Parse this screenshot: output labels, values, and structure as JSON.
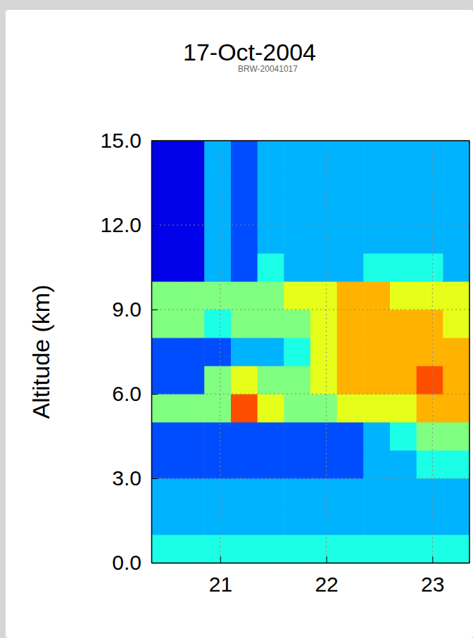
{
  "chart_data": {
    "type": "heatmap",
    "title": "17-Oct-2004",
    "subtitle": "BRW-20041017",
    "y_label": "Altitude (km)",
    "xlim": [
      20.35,
      23.35
    ],
    "xticks": [
      21,
      22,
      23
    ],
    "ylim": [
      0,
      15
    ],
    "yticks": [
      {
        "value": 0,
        "label": "0.0"
      },
      {
        "value": 3,
        "label": "3.0"
      },
      {
        "value": 6,
        "label": "6.0"
      },
      {
        "value": 9,
        "label": "9.0"
      },
      {
        "value": 12,
        "label": "12.0"
      },
      {
        "value": 15,
        "label": "15.0"
      }
    ],
    "grid": true,
    "x": [
      20.35,
      20.6,
      20.85,
      21.1,
      21.35,
      21.6,
      21.85,
      22.1,
      22.35,
      22.6,
      22.85,
      23.1,
      23.35
    ],
    "y": [
      0,
      1,
      2,
      3,
      4,
      5,
      6,
      7,
      8,
      9,
      10,
      11,
      12,
      13,
      14,
      15
    ],
    "zlim": [
      0,
      10
    ],
    "cells": [
      [
        4,
        4,
        4,
        4,
        4,
        4,
        4,
        4,
        4,
        4,
        4,
        4
      ],
      [
        3,
        3,
        3,
        3,
        3,
        3,
        3,
        3,
        3,
        3,
        3,
        3
      ],
      [
        3,
        3,
        3,
        3,
        3,
        3,
        3,
        3,
        3,
        3,
        3,
        3
      ],
      [
        2,
        2,
        2,
        2,
        2,
        2,
        2,
        2,
        3,
        3,
        4,
        4
      ],
      [
        2,
        2,
        2,
        2,
        2,
        2,
        2,
        2,
        3,
        4,
        5,
        5
      ],
      [
        5,
        5,
        5,
        8,
        6,
        5,
        5,
        6,
        6,
        6,
        7,
        7
      ],
      [
        2,
        2,
        5,
        6,
        5,
        5,
        6,
        7,
        7,
        7,
        8,
        7
      ],
      [
        2,
        2,
        2,
        3,
        3,
        4,
        6,
        7,
        7,
        7,
        7,
        7
      ],
      [
        5,
        5,
        4,
        5,
        5,
        5,
        6,
        7,
        7,
        7,
        7,
        6
      ],
      [
        5,
        5,
        5,
        5,
        5,
        6,
        6,
        7,
        7,
        6,
        6,
        6
      ],
      [
        1,
        1,
        3,
        2,
        4,
        3,
        3,
        3,
        4,
        4,
        4,
        3
      ],
      [
        1,
        1,
        3,
        2,
        3,
        3,
        3,
        3,
        3,
        3,
        3,
        3
      ],
      [
        1,
        1,
        3,
        2,
        3,
        3,
        3,
        3,
        3,
        3,
        3,
        3
      ],
      [
        1,
        1,
        3,
        2,
        3,
        3,
        3,
        3,
        3,
        3,
        3,
        3
      ],
      [
        1,
        1,
        3,
        2,
        3,
        3,
        3,
        3,
        3,
        3,
        3,
        3
      ]
    ]
  }
}
